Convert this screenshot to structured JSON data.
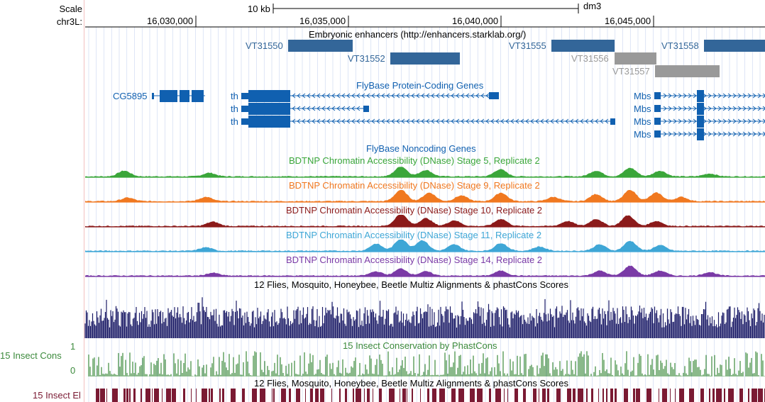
{
  "labels": {
    "scale": "Scale",
    "chrom": "chr3L:",
    "insect_cons": "15 Insect Cons",
    "insect_el": "15 Insect El",
    "cons_max": "1",
    "cons_min": "0"
  },
  "ruler": {
    "scale_text": "10 kb",
    "assembly": "dm3",
    "ticks": [
      "16,030,000",
      "16,035,000",
      "16,040,000",
      "16,045,000"
    ]
  },
  "tracks": {
    "enhancers_title": "Embryonic enhancers (http://enhancers.starklab.org/)",
    "enhancers": [
      {
        "name": "VT31550",
        "color": "#336699"
      },
      {
        "name": "VT31552",
        "color": "#336699"
      },
      {
        "name": "VT31555",
        "color": "#336699"
      },
      {
        "name": "VT31556",
        "color": "#999999"
      },
      {
        "name": "VT31558",
        "color": "#336699"
      },
      {
        "name": "VT31557",
        "color": "#999999"
      }
    ],
    "protein_title": "FlyBase Protein-Coding Genes",
    "genes": [
      "CG5895",
      "th",
      "th",
      "th",
      "Mbs",
      "Mbs",
      "Mbs",
      "Mbs"
    ],
    "noncoding_title": "FlyBase Noncoding Genes",
    "dnase": [
      {
        "title": "BDTNP Chromatin Accessibility (DNase) Stage 5, Replicate 2",
        "color": "#3aa63a"
      },
      {
        "title": "BDTNP Chromatin Accessibility (DNase) Stage 9, Replicate 2",
        "color": "#f07820"
      },
      {
        "title": "BDTNP Chromatin Accessibility (DNase) Stage 10, Replicate 2",
        "color": "#8b1a1a"
      },
      {
        "title": "BDTNP Chromatin Accessibility (DNase) Stage 11, Replicate 2",
        "color": "#3ea6d6"
      },
      {
        "title": "BDTNP Chromatin Accessibility (DNase) Stage 14, Replicate 2",
        "color": "#7a3aa6"
      }
    ],
    "multiz_title": "12 Flies, Mosquito, Honeybee, Beetle Multiz Alignments & phastCons Scores",
    "phastcons_title": "15 Insect Conservation by PhastCons",
    "multiz_title_2": "12 Flies, Mosquito, Honeybee, Beetle Multiz Alignments & phastCons Scores"
  },
  "colors": {
    "gene": "#1060b0",
    "multiz": "#1a1a66",
    "phastcons": "#3c8a3c",
    "elements": "#7a1a33",
    "grid": "#c8d4f0"
  }
}
